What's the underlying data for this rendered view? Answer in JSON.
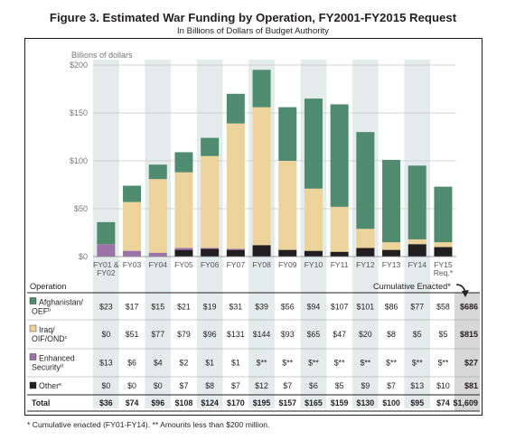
{
  "title": "Figure 3. Estimated War Funding by Operation, FY2001-FY2015 Request",
  "subtitle": "In Billions of Dollars of Budget Authority",
  "colors": {
    "afghanistan": "#4f8b6e",
    "iraq": "#ecd29b",
    "enhanced": "#9b73a9",
    "other": "#231f20",
    "stripe": "#e3ecea",
    "grid": "#c4c9c8",
    "total_shade": "#d7d7d7"
  },
  "chart_data": {
    "type": "bar",
    "stacked": true,
    "title": "Figure 3. Estimated War Funding by Operation, FY2001-FY2015 Request",
    "subtitle": "In Billions of Dollars of Budget Authority",
    "ylabel": "Billions of dollars",
    "ylim": [
      0,
      200
    ],
    "yticks": [
      "$0",
      "$50",
      "$100",
      "$150",
      "$200"
    ],
    "ytick_values": [
      0,
      50,
      100,
      150,
      200
    ],
    "categories": [
      "FY01 & FY02",
      "FY03",
      "FY04",
      "FY05",
      "FY06",
      "FY07",
      "FY08",
      "FY09",
      "FY10",
      "FY11",
      "FY12",
      "FY13",
      "FY14",
      "FY15 Req.*"
    ],
    "category_lines": [
      [
        "FY01 &",
        "FY02"
      ],
      [
        "FY03"
      ],
      [
        "FY04"
      ],
      [
        "FY05"
      ],
      [
        "FY06"
      ],
      [
        "FY07"
      ],
      [
        "FY08"
      ],
      [
        "FY09"
      ],
      [
        "FY10"
      ],
      [
        "FY11"
      ],
      [
        "FY12"
      ],
      [
        "FY13"
      ],
      [
        "FY14"
      ],
      [
        "FY15",
        "Req.*"
      ]
    ],
    "series": [
      {
        "key": "other",
        "name": "Other*",
        "values": [
          0,
          0,
          0,
          7,
          8,
          7,
          12,
          7,
          6,
          5,
          9,
          7,
          13,
          10
        ]
      },
      {
        "key": "enhanced",
        "name": "Enhanced Security",
        "values": [
          13,
          6,
          4,
          2,
          1,
          1,
          0,
          0,
          0,
          0,
          0,
          0,
          0,
          0
        ]
      },
      {
        "key": "iraq",
        "name": "Iraq/OIF/OND",
        "values": [
          0,
          51,
          77,
          79,
          96,
          131,
          144,
          93,
          65,
          47,
          20,
          8,
          5,
          5
        ]
      },
      {
        "key": "afghanistan",
        "name": "Afghanistan/OEF",
        "values": [
          23,
          17,
          15,
          21,
          19,
          31,
          39,
          56,
          94,
          107,
          101,
          86,
          77,
          58
        ]
      }
    ],
    "table": {
      "header_label": "Operation",
      "cumulative_label": "Cumulative Enacted*",
      "rows": [
        {
          "label": "Afghanistan/",
          "label2": "OEF",
          "sup": "b",
          "color": "#4f8b6e",
          "cells": [
            "$23",
            "$17",
            "$15",
            "$21",
            "$19",
            "$31",
            "$39",
            "$56",
            "$94",
            "$107",
            "$101",
            "$86",
            "$77",
            "$58"
          ],
          "cumulative": "$686"
        },
        {
          "label": "Iraq/",
          "label2": "OIF/OND",
          "sup": "c",
          "color": "#ecd29b",
          "cells": [
            "$0",
            "$51",
            "$77",
            "$79",
            "$96",
            "$131",
            "$144",
            "$93",
            "$65",
            "$47",
            "$20",
            "$8",
            "$5",
            "$5"
          ],
          "cumulative": "$815"
        },
        {
          "label": "Enhanced",
          "label2": "Security",
          "sup": "d",
          "color": "#9b73a9",
          "cells": [
            "$13",
            "$6",
            "$4",
            "$2",
            "$1",
            "$1",
            "$**",
            "$**",
            "$**",
            "$**",
            "$**",
            "$**",
            "$**",
            "$**"
          ],
          "cumulative": "$27"
        },
        {
          "label": "Other",
          "label2": "",
          "sup": "e",
          "color": "#231f20",
          "cells": [
            "$0",
            "$0",
            "$0",
            "$7",
            "$8",
            "$7",
            "$12",
            "$7",
            "$6",
            "$5",
            "$9",
            "$7",
            "$13",
            "$10"
          ],
          "cumulative": "$81"
        },
        {
          "label": "Total",
          "label2": "",
          "sup": "",
          "color": "",
          "bold": true,
          "cells": [
            "$36",
            "$74",
            "$96",
            "$108",
            "$124",
            "$170",
            "$195",
            "$157",
            "$165",
            "$159",
            "$130",
            "$100",
            "$95",
            "$74"
          ],
          "cumulative": "$1,609"
        }
      ]
    }
  },
  "footnote": "* Cumulative enacted (FY01-FY14).  ** Amounts less than $200 million."
}
